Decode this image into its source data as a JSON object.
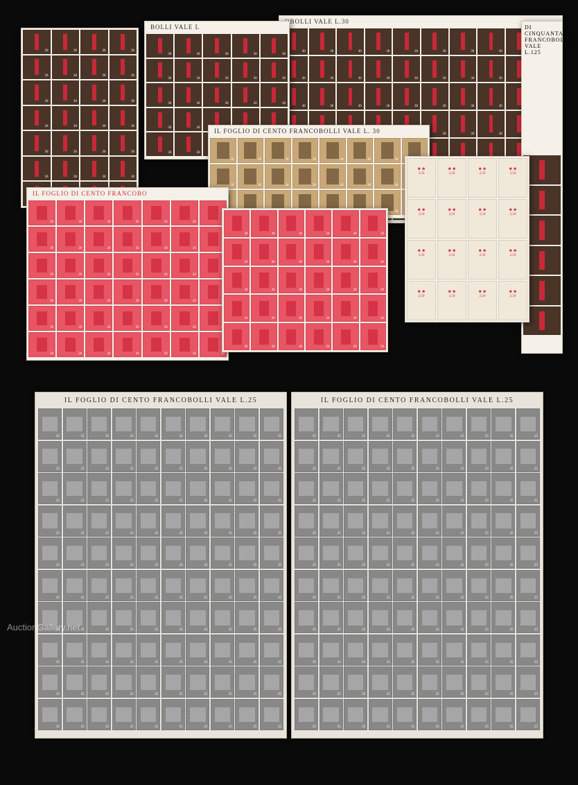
{
  "watermark": "AuctionGallery.net",
  "sheets": {
    "brown_top_right": {
      "header": "OBOLLI VALE L.30",
      "rows": 7,
      "cols": 10,
      "stamp_color": "#4a3428",
      "overprint_color": "#c82838",
      "value": "30"
    },
    "brown_top_mid": {
      "header": "BOLLI VALE L",
      "rows": 5,
      "cols": 5,
      "stamp_color": "#4a3428",
      "value": "30"
    },
    "brown_top_left": {
      "rows": 7,
      "cols": 4,
      "stamp_color": "#4a3428",
      "value": "30"
    },
    "tan_mid": {
      "header": "IL FOGLIO DI CENTO FRANCOBOLLI VALE L. 30",
      "rows": 3,
      "cols": 8,
      "stamp_color": "#c9a878",
      "value": "30"
    },
    "red_faces": {
      "rows": 4,
      "cols": 4,
      "stamp_color": "#f0e8d8",
      "accent_color": "#d04050",
      "value": "2,50",
      "text_top": "REPUBBLICA SOCIALE ITALIANA",
      "text_year": "1944"
    },
    "vertical_right": {
      "text": "DI CINQUANTA FRANCOBOLLI VALE L.125",
      "rows": 6,
      "cols": 1
    },
    "pink_left": {
      "header": "IL FOGLIO DI CENTO FRANCOBO",
      "rows": 6,
      "cols": 7,
      "stamp_color": "#e85565",
      "value": "20"
    },
    "pink_right": {
      "rows": 5,
      "cols": 6,
      "stamp_color": "#e85565",
      "value": "20"
    },
    "gray_left": {
      "header": "IL FOGLIO DI CENTO FRANCOBOLLI VALE L.25",
      "rows": 10,
      "cols": 10,
      "stamp_color": "#888888",
      "value": "25",
      "sheet_number": "0856"
    },
    "gray_right": {
      "header": "IL FOGLIO DI CENTO FRANCOBOLLI VALE L.25",
      "rows": 10,
      "cols": 10,
      "stamp_color": "#888888",
      "value": "25",
      "sheet_number": "0856"
    }
  },
  "layout": {
    "top_height": 555,
    "bottom_height": 520,
    "background": "#0a0a0a",
    "sheet_bg": "#f5f0e8",
    "gray_sheet_bg": "#e8e4dc"
  }
}
